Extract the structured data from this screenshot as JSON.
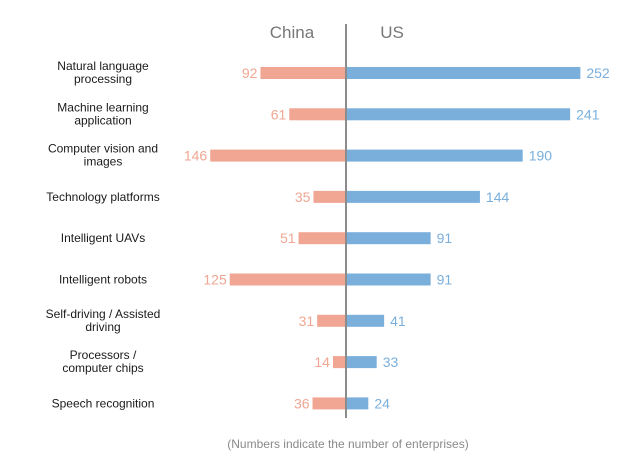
{
  "chart_data": {
    "type": "bar",
    "orientation": "horizontal-diverging",
    "categories": [
      [
        "Natural language",
        "processing"
      ],
      [
        "Machine learning",
        "application"
      ],
      [
        "Computer vision and",
        "images"
      ],
      [
        "Technology platforms"
      ],
      [
        "Intelligent UAVs"
      ],
      [
        "Intelligent robots"
      ],
      [
        "Self-driving / Assisted",
        "driving"
      ],
      [
        "Processors /",
        "computer chips"
      ],
      [
        "Speech recognition"
      ]
    ],
    "series": [
      {
        "name": "China",
        "values": [
          92,
          61,
          146,
          35,
          51,
          125,
          31,
          14,
          36
        ],
        "color": "#f0a692"
      },
      {
        "name": "US",
        "values": [
          252,
          241,
          190,
          144,
          91,
          91,
          41,
          33,
          24
        ],
        "color": "#7aafdc"
      }
    ],
    "axis_color": "#8c8c8c",
    "footnote": "(Numbers indicate the number of enterprises)"
  }
}
